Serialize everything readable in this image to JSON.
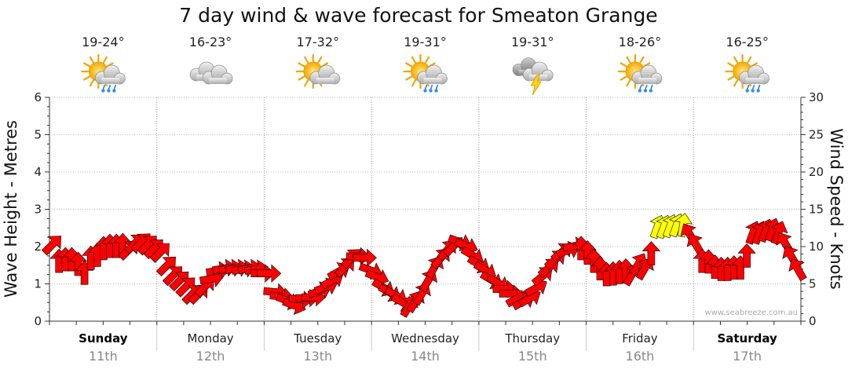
{
  "chart_data": {
    "type": "line",
    "title": "7 day wind & wave forecast for Smeaton Grange",
    "ylabel_left": "Wave Height - Metres",
    "ylabel_right": "Wind Speed - Knots",
    "ylim_left": [
      0,
      6
    ],
    "ylim_right": [
      0,
      30
    ],
    "yticks_left": [
      "0",
      "1",
      "2",
      "3",
      "4",
      "5",
      "6"
    ],
    "yticks_right": [
      "0",
      "5",
      "10",
      "15",
      "20",
      "25",
      "30"
    ],
    "days": [
      {
        "name": "Sunday",
        "date": "11th",
        "temp": "19-24°",
        "weather": "partly-cloudy-showers",
        "bold": true
      },
      {
        "name": "Monday",
        "date": "12th",
        "temp": "16-23°",
        "weather": "cloudy",
        "bold": false
      },
      {
        "name": "Tuesday",
        "date": "13th",
        "temp": "17-32°",
        "weather": "partly-cloudy",
        "bold": false
      },
      {
        "name": "Wednesday",
        "date": "14th",
        "temp": "19-31°",
        "weather": "partly-cloudy-showers",
        "bold": false
      },
      {
        "name": "Thursday",
        "date": "15th",
        "temp": "19-31°",
        "weather": "thunderstorm",
        "bold": false
      },
      {
        "name": "Friday",
        "date": "16th",
        "temp": "18-26°",
        "weather": "partly-cloudy-showers",
        "bold": false
      },
      {
        "name": "Saturday",
        "date": "17th",
        "temp": "16-25°",
        "weather": "partly-cloudy-showers",
        "bold": true
      }
    ],
    "wind_series": {
      "name": "Wind speed (knots) with direction, 3-hourly",
      "colors": {
        "normal": "#ff0000",
        "strong": "#ffff00",
        "outline": "#000000"
      },
      "threshold_knots": 12.5,
      "values": [
        10.3,
        8.1,
        8.3,
        8.3,
        7.7,
        6.5,
        8.5,
        8.9,
        9.8,
        10.1,
        10.1,
        10.2,
        9.6,
        10.5,
        10.6,
        10.3,
        9.8,
        9.3,
        7.5,
        6.2,
        5.5,
        4.7,
        3.7,
        3.7,
        4.7,
        5.7,
        6.8,
        7.1,
        7.1,
        7.1,
        7.0,
        7.1,
        7.0,
        6.4,
        6.4,
        3.9,
        3.3,
        2.7,
        2.1,
        2.9,
        3.1,
        3.2,
        4.1,
        4.6,
        5.5,
        6.7,
        7.3,
        8.5,
        8.7,
        8.5,
        6.8,
        5.9,
        4.5,
        3.8,
        3.4,
        2.5,
        2.1,
        2.7,
        3.7,
        5.5,
        7.3,
        8.5,
        9.6,
        10.1,
        10.6,
        10.1,
        8.8,
        7.6,
        6.8,
        5.5,
        5.1,
        4.3,
        3.7,
        3.1,
        2.7,
        3.1,
        4.5,
        6.1,
        7.2,
        8.3,
        9.3,
        9.5,
        10.1,
        9.8,
        9.2,
        8.1,
        7.1,
        6.3,
        6.4,
        6.6,
        6.8,
        6.3,
        7.7,
        7.1,
        9.1,
        12.7,
        12.7,
        12.8,
        12.9,
        12.9,
        11.7,
        10.3,
        8.1,
        8.0,
        7.3,
        7.0,
        7.0,
        7.2,
        7.2,
        8.8,
        11.9,
        11.9,
        12.2,
        12.3,
        11.9,
        10.5,
        8.7,
        7.0
      ],
      "directions_deg": [
        45,
        0,
        0,
        0,
        0,
        0,
        0,
        0,
        0,
        0,
        0,
        0,
        45,
        45,
        45,
        45,
        45,
        45,
        45,
        45,
        45,
        45,
        45,
        45,
        45,
        80,
        80,
        80,
        80,
        80,
        80,
        80,
        80,
        90,
        90,
        95,
        95,
        110,
        110,
        95,
        90,
        90,
        70,
        70,
        60,
        60,
        45,
        45,
        90,
        90,
        110,
        110,
        120,
        120,
        120,
        120,
        30,
        30,
        30,
        30,
        30,
        40,
        40,
        45,
        110,
        110,
        120,
        120,
        120,
        120,
        120,
        90,
        90,
        60,
        60,
        60,
        60,
        50,
        50,
        50,
        50,
        70,
        80,
        0,
        0,
        0,
        0,
        0,
        0,
        0,
        0,
        30,
        30,
        30,
        0,
        20,
        20,
        20,
        20,
        10,
        330,
        330,
        0,
        0,
        0,
        0,
        0,
        0,
        0,
        0,
        20,
        20,
        20,
        20,
        20,
        330,
        330,
        330
      ]
    },
    "credit": "www.seabreeze.com.au"
  }
}
